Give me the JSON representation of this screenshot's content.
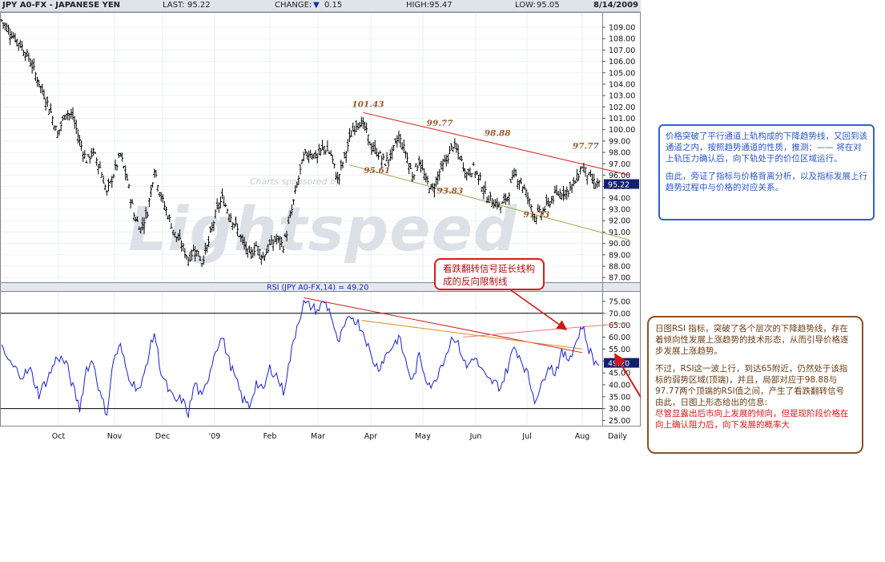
{
  "header": {
    "symbol": "JPY A0-FX - JAPANESE YEN",
    "last_label": "LAST:",
    "last": "95.22",
    "change_label": "CHANGE:",
    "change": "0.15",
    "high_label": "HIGH:",
    "high": "95.47",
    "low_label": "LOW:",
    "low": "95.05",
    "date": "8/14/2009"
  },
  "colors": {
    "price": "#000000",
    "rsi": "#1a22c8",
    "trend_red": "#d01a1a",
    "trend_olive": "#9aa64a",
    "trend_orange": "#e08a20",
    "trend_pink": "#f07878",
    "label_brown": "#9a5a2e"
  },
  "chart_data": [
    {
      "type": "ohlc",
      "title": "JPY A0-FX - JAPANESE YEN",
      "sponsor_text": "Charts sponsored by",
      "watermark": "Lightspeed",
      "ylim": [
        86.8,
        110.2
      ],
      "y_ticks": [
        "109.00",
        "108.00",
        "107.00",
        "106.00",
        "105.00",
        "104.00",
        "103.00",
        "102.00",
        "101.00",
        "100.00",
        "99.00",
        "98.00",
        "97.00",
        "96.00",
        "95.00",
        "94.00",
        "93.00",
        "92.00",
        "91.00",
        "90.00",
        "89.00",
        "88.00",
        "87.00"
      ],
      "last_value": "95.22",
      "x_months": [
        "Oct",
        "Nov",
        "Dec",
        "'09",
        "Feb",
        "Mar",
        "Apr",
        "May",
        "Jun",
        "Jul",
        "Aug",
        "Daily"
      ],
      "anchor_points": [
        [
          0,
          109.6
        ],
        [
          6,
          108.4
        ],
        [
          12,
          107.3
        ],
        [
          17,
          106.0
        ],
        [
          22,
          104.1
        ],
        [
          28,
          102.0
        ],
        [
          33,
          99.6
        ],
        [
          38,
          101.6
        ],
        [
          42,
          101.1
        ],
        [
          46,
          99.0
        ],
        [
          50,
          97.3
        ],
        [
          54,
          98.0
        ],
        [
          58,
          96.7
        ],
        [
          62,
          94.4
        ],
        [
          66,
          96.1
        ],
        [
          70,
          97.8
        ],
        [
          74,
          95.6
        ],
        [
          78,
          92.5
        ],
        [
          82,
          91.3
        ],
        [
          86,
          92.8
        ],
        [
          90,
          96.6
        ],
        [
          94,
          94.1
        ],
        [
          98,
          92.5
        ],
        [
          102,
          90.8
        ],
        [
          106,
          89.9
        ],
        [
          110,
          88.6
        ],
        [
          114,
          89.6
        ],
        [
          118,
          88.4
        ],
        [
          122,
          90.1
        ],
        [
          126,
          92.5
        ],
        [
          130,
          94.0
        ],
        [
          134,
          92.7
        ],
        [
          138,
          91.5
        ],
        [
          142,
          90.1
        ],
        [
          146,
          88.9
        ],
        [
          150,
          89.8
        ],
        [
          154,
          88.8
        ],
        [
          158,
          89.8
        ],
        [
          162,
          90.4
        ],
        [
          166,
          89.8
        ],
        [
          170,
          92.2
        ],
        [
          174,
          95.1
        ],
        [
          178,
          97.6
        ],
        [
          182,
          98.0
        ],
        [
          186,
          97.6
        ],
        [
          190,
          98.5
        ],
        [
          194,
          97.8
        ],
        [
          198,
          95.6
        ],
        [
          202,
          97.6
        ],
        [
          206,
          99.6
        ],
        [
          210,
          100.8
        ],
        [
          214,
          100.2
        ],
        [
          218,
          98.4
        ],
        [
          222,
          97.9
        ],
        [
          226,
          97.1
        ],
        [
          230,
          97.9
        ],
        [
          234,
          99.4
        ],
        [
          238,
          98.0
        ],
        [
          242,
          96.0
        ],
        [
          246,
          97.3
        ],
        [
          250,
          95.5
        ],
        [
          254,
          94.7
        ],
        [
          258,
          96.3
        ],
        [
          262,
          97.3
        ],
        [
          266,
          98.7
        ],
        [
          270,
          97.6
        ],
        [
          274,
          96.1
        ],
        [
          278,
          96.6
        ],
        [
          282,
          95.6
        ],
        [
          286,
          94.0
        ],
        [
          290,
          93.7
        ],
        [
          294,
          93.2
        ],
        [
          298,
          94.1
        ],
        [
          302,
          96.1
        ],
        [
          306,
          95.4
        ],
        [
          310,
          94.1
        ],
        [
          314,
          92.4
        ],
        [
          318,
          92.7
        ],
        [
          322,
          93.5
        ],
        [
          326,
          94.2
        ],
        [
          330,
          94.5
        ],
        [
          334,
          94.7
        ],
        [
          338,
          95.4
        ],
        [
          342,
          96.8
        ],
        [
          346,
          95.9
        ],
        [
          350,
          95.2
        ],
        [
          352,
          95.2
        ]
      ],
      "annotations": [
        {
          "text": "101.43",
          "x": 213,
          "y": 101.43
        },
        {
          "text": "99.77",
          "x": 257,
          "y": 99.77
        },
        {
          "text": "98.88",
          "x": 291,
          "y": 98.88
        },
        {
          "text": "97.77",
          "x": 343,
          "y": 97.77
        },
        {
          "text": "95.61",
          "x": 220,
          "y": 95.61
        },
        {
          "text": "93.83",
          "x": 263,
          "y": 93.83
        },
        {
          "text": "91.73",
          "x": 314,
          "y": 91.73
        }
      ],
      "trendlines": [
        {
          "color": "trend_red",
          "from": [
            213,
            101.5
          ],
          "to": [
            370,
            96.0
          ]
        },
        {
          "color": "trend_olive",
          "from": [
            205,
            96.9
          ],
          "to": [
            370,
            90.3
          ]
        }
      ]
    },
    {
      "type": "line",
      "title": "RSI (JPY A0-FX,14) = 49.20",
      "ylim": [
        23.5,
        79
      ],
      "y_ticks": [
        "75.00",
        "70.00",
        "65.00",
        "60.00",
        "55.00",
        "50.00",
        "45.00",
        "40.00",
        "35.00",
        "30.00",
        "25.00"
      ],
      "last_value": "49.20",
      "levels": [
        70,
        30
      ],
      "anchor_points": [
        [
          0,
          55
        ],
        [
          6,
          48
        ],
        [
          12,
          44
        ],
        [
          17,
          46
        ],
        [
          22,
          36
        ],
        [
          28,
          44
        ],
        [
          33,
          52
        ],
        [
          38,
          49
        ],
        [
          42,
          39
        ],
        [
          46,
          30
        ],
        [
          50,
          47
        ],
        [
          54,
          50
        ],
        [
          58,
          36
        ],
        [
          62,
          28
        ],
        [
          66,
          51
        ],
        [
          70,
          56
        ],
        [
          74,
          45
        ],
        [
          78,
          40
        ],
        [
          82,
          38
        ],
        [
          86,
          51
        ],
        [
          90,
          62
        ],
        [
          94,
          45
        ],
        [
          98,
          38
        ],
        [
          102,
          33
        ],
        [
          106,
          34
        ],
        [
          110,
          28
        ],
        [
          114,
          41
        ],
        [
          118,
          34
        ],
        [
          122,
          44
        ],
        [
          126,
          55
        ],
        [
          130,
          60
        ],
        [
          134,
          50
        ],
        [
          138,
          42
        ],
        [
          142,
          34
        ],
        [
          146,
          31
        ],
        [
          150,
          41
        ],
        [
          154,
          37
        ],
        [
          158,
          47
        ],
        [
          162,
          44
        ],
        [
          166,
          37
        ],
        [
          170,
          51
        ],
        [
          174,
          65
        ],
        [
          178,
          74
        ],
        [
          182,
          73
        ],
        [
          186,
          71
        ],
        [
          190,
          75
        ],
        [
          194,
          70
        ],
        [
          198,
          57
        ],
        [
          202,
          64
        ],
        [
          206,
          69
        ],
        [
          210,
          66
        ],
        [
          214,
          61
        ],
        [
          218,
          51
        ],
        [
          222,
          47
        ],
        [
          226,
          52
        ],
        [
          230,
          56
        ],
        [
          234,
          60
        ],
        [
          238,
          50
        ],
        [
          242,
          41
        ],
        [
          246,
          52
        ],
        [
          250,
          43
        ],
        [
          254,
          39
        ],
        [
          258,
          47
        ],
        [
          262,
          53
        ],
        [
          266,
          61
        ],
        [
          270,
          55
        ],
        [
          274,
          47
        ],
        [
          278,
          52
        ],
        [
          282,
          47
        ],
        [
          286,
          42
        ],
        [
          290,
          41
        ],
        [
          294,
          39
        ],
        [
          298,
          47
        ],
        [
          302,
          56
        ],
        [
          306,
          51
        ],
        [
          310,
          44
        ],
        [
          314,
          34
        ],
        [
          318,
          39
        ],
        [
          322,
          49
        ],
        [
          326,
          45
        ],
        [
          330,
          53
        ],
        [
          334,
          51
        ],
        [
          338,
          57
        ],
        [
          342,
          65
        ],
        [
          346,
          55
        ],
        [
          350,
          49
        ],
        [
          352,
          49.2
        ]
      ],
      "trendlines": [
        {
          "color": "trend_red",
          "from": [
            178,
            76.5
          ],
          "to": [
            342,
            53.5
          ]
        },
        {
          "color": "trend_orange",
          "from": [
            212,
            67
          ],
          "to": [
            342,
            55
          ]
        },
        {
          "color": "trend_pink",
          "from": [
            272,
            60
          ],
          "to": [
            370,
            66
          ]
        }
      ]
    }
  ],
  "notes": {
    "blue": {
      "lines": [
        "价格突破了平行通道上轨构成的下降趋势线，又回到该通道之内，按照趋势通道的性质，推测：—— 将在对上轨压力确认后，向下轨处于的价位区域运行。",
        "由此，旁证了指标与价格背离分析，以及指标发展上行趋势过程中与价格的对应关系。"
      ]
    },
    "red": {
      "text": "看跌翻转信号延长线构成的反向限制线"
    },
    "brown": {
      "para1": "日图RSI 指标，突破了各个层次的下降趋势线，存在着倾向性发展上涨趋势的技术形态，从而引导价格逐步发展上涨趋势。",
      "para2": "不过，RSI这一波上行，到达65附近，仍然处于该指标的弱势区域(顶端)，并且，局部对应于98.88与97.77两个顶端的RSI值之间，产生了看跌翻转信号",
      "para3_a": "由此，日图上形态给出的信息:",
      "para3_b": "尽管显露出后市向上发展的倾向，但是现阶段价格在向上确认阻力后，向下发展的概率大"
    }
  }
}
